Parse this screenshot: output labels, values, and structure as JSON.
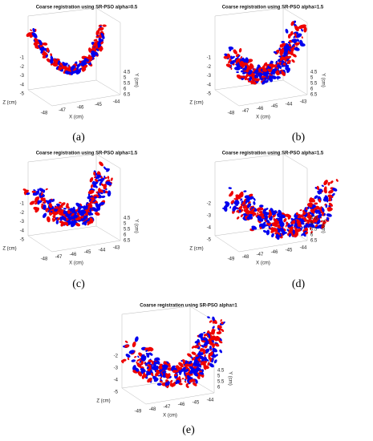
{
  "panels": [
    {
      "title": "Coarse registration using SR-PSO alpha=0.5",
      "caption": "(a)",
      "z_axis_label": "Z (cm)",
      "x_axis_label": "X (cm)",
      "y_axis_label": "Y (cm)",
      "z_ticks": [
        "-1",
        "-2",
        "-3",
        "-4",
        "-5"
      ],
      "x_ticks": [
        "-48",
        "-47",
        "-46",
        "-45",
        "-44"
      ],
      "y_ticks": [
        "4.5",
        "5",
        "5.5",
        "6",
        "6.5"
      ]
    },
    {
      "title": "Coarse registration using SR-PSO alpha=1.5",
      "caption": "(b)",
      "z_axis_label": "Z (cm)",
      "x_axis_label": "X (cm)",
      "y_axis_label": "Y (cm)",
      "z_ticks": [
        "-1",
        "-2",
        "-3",
        "-4",
        "-5"
      ],
      "x_ticks": [
        "-48",
        "-47",
        "-46",
        "-45",
        "-44",
        "-43"
      ],
      "y_ticks": [
        "4.5",
        "5",
        "5.5",
        "6",
        "6.5"
      ]
    },
    {
      "title": "Coarse registration using SR-PSO alpha=1.5",
      "caption": "(c)",
      "z_axis_label": "Z (cm)",
      "x_axis_label": "X (cm)",
      "y_axis_label": "Y (cm)",
      "z_ticks": [
        "-1",
        "-2",
        "-3",
        "-4",
        "-5"
      ],
      "x_ticks": [
        "-48",
        "-47",
        "-46",
        "-45",
        "-44",
        "-43"
      ],
      "y_ticks": [
        "4.5",
        "5",
        "5.5",
        "6",
        "6.5"
      ]
    },
    {
      "title": "Coarse registration using SR-PSO alpha=1.5",
      "caption": "(d)",
      "z_axis_label": "Z (cm)",
      "x_axis_label": "X (cm)",
      "y_axis_label": "Y (cm)",
      "z_ticks": [
        "-2",
        "-3",
        "-4",
        "-5"
      ],
      "x_ticks": [
        "-49",
        "-48",
        "-47",
        "-46",
        "-45",
        "-44"
      ],
      "y_ticks": [
        "4.5",
        "5",
        "5.5",
        "6",
        "6.5"
      ]
    },
    {
      "title": "Coarse registration using SR-PSO alpha=1",
      "caption": "(e)",
      "z_axis_label": "Z (cm)",
      "x_axis_label": "X (cm)",
      "y_axis_label": "Y (cm)",
      "z_ticks": [
        "-2",
        "-3",
        "-4",
        "-5"
      ],
      "x_ticks": [
        "-49",
        "-48",
        "-47",
        "-46",
        "-45",
        "-44"
      ],
      "y_ticks": [
        "4.5",
        "5",
        "5.5",
        "6"
      ]
    }
  ]
}
